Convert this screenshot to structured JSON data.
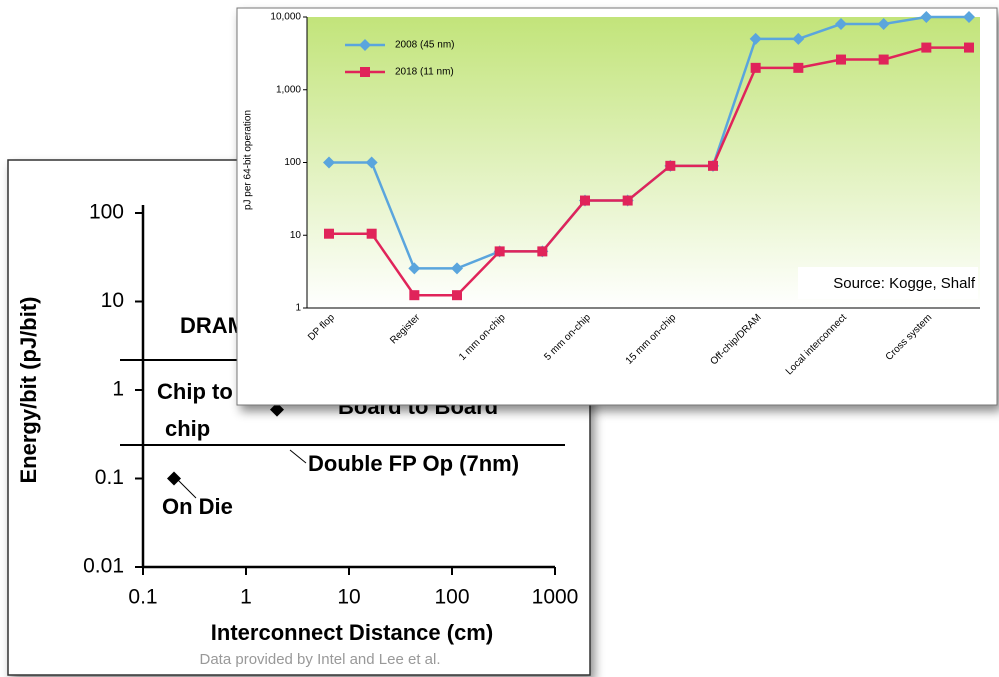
{
  "chart_data": [
    {
      "type": "scatter",
      "xlabel": "Interconnect Distance (cm)",
      "ylabel": "Energy/bit (pJ/bit)",
      "footer": "Data provided by Intel and Lee et al.",
      "x": [
        0.2,
        2
      ],
      "y": [
        0.1,
        0.6
      ],
      "color": "#000000",
      "xscale": "log",
      "yscale": "log",
      "xlim": [
        0.1,
        1000
      ],
      "ylim": [
        0.01,
        100
      ],
      "xticks": [
        0.1,
        1,
        10,
        100,
        1000
      ],
      "yticks": [
        0.01,
        0.1,
        1,
        10,
        100
      ],
      "annotations": [
        "DRAM",
        "Chip to",
        "chip",
        "Board to Board",
        "Double FP Op (7nm)",
        "On Die"
      ]
    },
    {
      "type": "line",
      "ylabel": "pJ per 64-bit operation",
      "annotation": "Source: Kogge, Shalf",
      "yscale": "log",
      "ylim": [
        1,
        10000
      ],
      "yticks": [
        {
          "value": 10000,
          "label": "10,000"
        },
        {
          "value": 1000,
          "label": "1,000"
        },
        100,
        10,
        1
      ],
      "categories": [
        "DP flop",
        null,
        "Register",
        null,
        "1 mm on-chip",
        null,
        "5 mm on-chip",
        null,
        "15 mm on-chip",
        null,
        "Off-chip/DRAM",
        null,
        "Local interconnect",
        null,
        "Cross system",
        null
      ],
      "legend": "upper left",
      "series": [
        {
          "name": "2008 (45 nm)",
          "color": "#5aa5dd",
          "marker": "diamond",
          "values": [
            100,
            100,
            3.5,
            3.5,
            6,
            6,
            30,
            30,
            90,
            90,
            5000,
            5000,
            8000,
            8000,
            10000,
            10000
          ]
        },
        {
          "name": "2018 (11 nm)",
          "color": "#e0245a",
          "marker": "square",
          "values": [
            10.5,
            10.5,
            1.5,
            1.5,
            6,
            6,
            30,
            30,
            90,
            90,
            2000,
            2000,
            2600,
            2600,
            3800,
            3800
          ]
        }
      ]
    }
  ]
}
